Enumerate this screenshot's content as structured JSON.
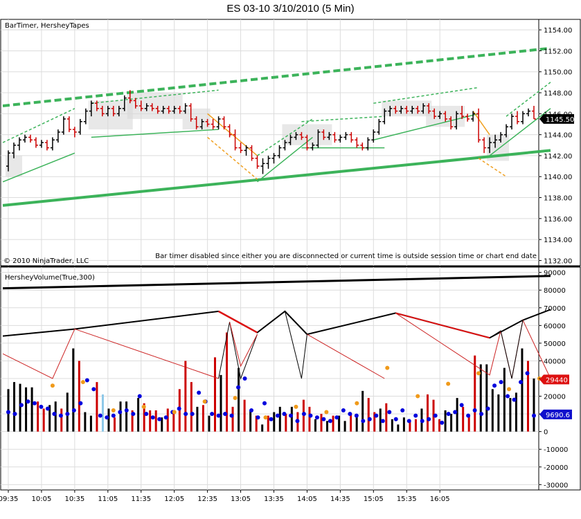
{
  "window": {
    "title": "ES 03-10  3/10/2010 (5 Min)"
  },
  "upper_panel": {
    "indicator_label": "BarTimer, HersheyTapes",
    "copyright": "© 2010 NinjaTrader, LLC",
    "message": "Bar timer disabled since either you are disconnected or current time is outside session time or chart end date",
    "current_price": "1145.50",
    "current_price_value": 1145.5
  },
  "lower_panel": {
    "indicator_label": "HersheyVolume(True,300)",
    "badge_red": "29440",
    "badge_red_value": 29440,
    "badge_blue": "9690.6",
    "badge_blue_value": 9690.6
  },
  "colors": {
    "up_bar": "#000000",
    "down_bar": "#cc0000",
    "green_line": "#3cb35a",
    "orange_line": "#f0a020",
    "blue_dot": "#0000dd",
    "orange_dot": "#f09a1a",
    "light_blue_bar": "#8cc8e8",
    "grid": "#dcdcdc",
    "gray_box": "#d8d8d8"
  },
  "chart_data": [
    {
      "type": "ohlc",
      "title": "ES 03-10  3/10/2010 (5 Min)",
      "ylim": [
        1131.5,
        1155
      ],
      "y_ticks": [
        "1154.00",
        "1152.00",
        "1150.00",
        "1148.00",
        "1146.00",
        "1144.00",
        "1142.00",
        "1140.00",
        "1138.00",
        "1136.00",
        "1134.00",
        "1132.00"
      ],
      "x_ticks": [
        "09:35",
        "10:05",
        "10:35",
        "11:05",
        "11:35",
        "12:05",
        "12:35",
        "13:05",
        "13:35",
        "14:05",
        "14:35",
        "15:05",
        "15:35",
        "16:05"
      ],
      "bars": [
        {
          "o": 1141,
          "h": 1142.5,
          "l": 1140.5,
          "c": 1142.25
        },
        {
          "o": 1142.25,
          "h": 1143.25,
          "l": 1141.75,
          "c": 1143
        },
        {
          "o": 1143,
          "h": 1143.75,
          "l": 1142.5,
          "c": 1143.5
        },
        {
          "o": 1143.5,
          "h": 1144,
          "l": 1143.25,
          "c": 1143.75
        },
        {
          "o": 1143.75,
          "h": 1144,
          "l": 1143.25,
          "c": 1143.5
        },
        {
          "o": 1143.5,
          "h": 1143.75,
          "l": 1142.75,
          "c": 1143
        },
        {
          "o": 1143,
          "h": 1143.5,
          "l": 1142.75,
          "c": 1143.25
        },
        {
          "o": 1143.25,
          "h": 1143.5,
          "l": 1142.5,
          "c": 1142.75
        },
        {
          "o": 1142.75,
          "h": 1143.75,
          "l": 1142.5,
          "c": 1143.5
        },
        {
          "o": 1143.5,
          "h": 1144.5,
          "l": 1143.25,
          "c": 1144.25
        },
        {
          "o": 1144.25,
          "h": 1145.75,
          "l": 1144,
          "c": 1145.5
        },
        {
          "o": 1145.5,
          "h": 1145.75,
          "l": 1144.25,
          "c": 1144.5
        },
        {
          "o": 1144.5,
          "h": 1144.75,
          "l": 1143.75,
          "c": 1144.25
        },
        {
          "o": 1144.25,
          "h": 1145.5,
          "l": 1144,
          "c": 1145.25
        },
        {
          "o": 1145.25,
          "h": 1146.5,
          "l": 1145,
          "c": 1146.25
        },
        {
          "o": 1146.25,
          "h": 1147.25,
          "l": 1145.75,
          "c": 1147
        },
        {
          "o": 1147,
          "h": 1147.25,
          "l": 1146.25,
          "c": 1146.5
        },
        {
          "o": 1146.5,
          "h": 1146.75,
          "l": 1145.75,
          "c": 1146
        },
        {
          "o": 1146,
          "h": 1146.75,
          "l": 1145.75,
          "c": 1146.5
        },
        {
          "o": 1146.5,
          "h": 1146.75,
          "l": 1145.75,
          "c": 1146
        },
        {
          "o": 1146,
          "h": 1146.75,
          "l": 1145.75,
          "c": 1146.5
        },
        {
          "o": 1146.5,
          "h": 1147.75,
          "l": 1146.25,
          "c": 1147.5
        },
        {
          "o": 1147.5,
          "h": 1148.25,
          "l": 1147,
          "c": 1147.25
        },
        {
          "o": 1147.25,
          "h": 1147.5,
          "l": 1146.5,
          "c": 1146.75
        },
        {
          "o": 1146.75,
          "h": 1147.25,
          "l": 1146.25,
          "c": 1146.5
        },
        {
          "o": 1146.5,
          "h": 1147,
          "l": 1146.25,
          "c": 1146.75
        },
        {
          "o": 1146.75,
          "h": 1147,
          "l": 1146.25,
          "c": 1146.5
        },
        {
          "o": 1146.5,
          "h": 1146.75,
          "l": 1146,
          "c": 1146.25
        },
        {
          "o": 1146.25,
          "h": 1146.75,
          "l": 1146,
          "c": 1146.5
        },
        {
          "o": 1146.5,
          "h": 1146.75,
          "l": 1146,
          "c": 1146.25
        },
        {
          "o": 1146.25,
          "h": 1146.75,
          "l": 1146,
          "c": 1146.5
        },
        {
          "o": 1146.5,
          "h": 1146.75,
          "l": 1146,
          "c": 1146.25
        },
        {
          "o": 1146.25,
          "h": 1147,
          "l": 1146,
          "c": 1146.75
        },
        {
          "o": 1146.75,
          "h": 1147,
          "l": 1145.25,
          "c": 1145.5
        },
        {
          "o": 1145.5,
          "h": 1145.75,
          "l": 1144.5,
          "c": 1144.75
        },
        {
          "o": 1144.75,
          "h": 1145.5,
          "l": 1144.5,
          "c": 1145.25
        },
        {
          "o": 1145.25,
          "h": 1145.5,
          "l": 1144.75,
          "c": 1145
        },
        {
          "o": 1145,
          "h": 1145.5,
          "l": 1144.5,
          "c": 1144.75
        },
        {
          "o": 1144.75,
          "h": 1145.75,
          "l": 1144.5,
          "c": 1145.5
        },
        {
          "o": 1145.5,
          "h": 1145.75,
          "l": 1144.5,
          "c": 1144.75
        },
        {
          "o": 1144.75,
          "h": 1145,
          "l": 1143.75,
          "c": 1144
        },
        {
          "o": 1144,
          "h": 1144.5,
          "l": 1142.5,
          "c": 1142.75
        },
        {
          "o": 1142.75,
          "h": 1143.25,
          "l": 1142.25,
          "c": 1142.5
        },
        {
          "o": 1142.5,
          "h": 1143,
          "l": 1142,
          "c": 1142.75
        },
        {
          "o": 1142.75,
          "h": 1143,
          "l": 1141.5,
          "c": 1141.75
        },
        {
          "o": 1141.75,
          "h": 1142,
          "l": 1140.75,
          "c": 1141
        },
        {
          "o": 1141,
          "h": 1141.75,
          "l": 1140.25,
          "c": 1141.25
        },
        {
          "o": 1141.25,
          "h": 1142,
          "l": 1140.75,
          "c": 1141.75
        },
        {
          "o": 1141.75,
          "h": 1142.25,
          "l": 1141.25,
          "c": 1142
        },
        {
          "o": 1142,
          "h": 1143,
          "l": 1141.75,
          "c": 1142.75
        },
        {
          "o": 1142.75,
          "h": 1143.5,
          "l": 1142.5,
          "c": 1143.25
        },
        {
          "o": 1143.25,
          "h": 1144,
          "l": 1143,
          "c": 1143.75
        },
        {
          "o": 1143.75,
          "h": 1144.25,
          "l": 1143.5,
          "c": 1144
        },
        {
          "o": 1144,
          "h": 1144.25,
          "l": 1143.5,
          "c": 1143.75
        },
        {
          "o": 1143.75,
          "h": 1144,
          "l": 1142.5,
          "c": 1142.75
        },
        {
          "o": 1142.75,
          "h": 1143.25,
          "l": 1142.5,
          "c": 1143
        },
        {
          "o": 1143,
          "h": 1144.5,
          "l": 1142.75,
          "c": 1144.25
        },
        {
          "o": 1144.25,
          "h": 1144.5,
          "l": 1143.5,
          "c": 1143.75
        },
        {
          "o": 1143.75,
          "h": 1144.25,
          "l": 1143.5,
          "c": 1144
        },
        {
          "o": 1144,
          "h": 1144.25,
          "l": 1143.25,
          "c": 1143.5
        },
        {
          "o": 1143.5,
          "h": 1144,
          "l": 1143.25,
          "c": 1143.75
        },
        {
          "o": 1143.75,
          "h": 1144.25,
          "l": 1143.5,
          "c": 1144
        },
        {
          "o": 1144,
          "h": 1144.25,
          "l": 1143.25,
          "c": 1143.5
        },
        {
          "o": 1143.5,
          "h": 1143.75,
          "l": 1142.75,
          "c": 1143
        },
        {
          "o": 1143,
          "h": 1143.25,
          "l": 1142.5,
          "c": 1142.75
        },
        {
          "o": 1142.75,
          "h": 1143.75,
          "l": 1142.5,
          "c": 1143.5
        },
        {
          "o": 1143.5,
          "h": 1144.5,
          "l": 1143.25,
          "c": 1144.25
        },
        {
          "o": 1144.25,
          "h": 1145.5,
          "l": 1144,
          "c": 1145.25
        },
        {
          "o": 1145.25,
          "h": 1146.5,
          "l": 1145,
          "c": 1146.25
        },
        {
          "o": 1146.25,
          "h": 1146.75,
          "l": 1145.75,
          "c": 1146.5
        },
        {
          "o": 1146.5,
          "h": 1146.75,
          "l": 1146,
          "c": 1146.25
        },
        {
          "o": 1146.25,
          "h": 1146.75,
          "l": 1146,
          "c": 1146.5
        },
        {
          "o": 1146.5,
          "h": 1146.75,
          "l": 1146,
          "c": 1146.25
        },
        {
          "o": 1146.25,
          "h": 1146.75,
          "l": 1146,
          "c": 1146.5
        },
        {
          "o": 1146.5,
          "h": 1146.75,
          "l": 1146,
          "c": 1146.25
        },
        {
          "o": 1146.25,
          "h": 1147,
          "l": 1146,
          "c": 1146.75
        },
        {
          "o": 1146.75,
          "h": 1147,
          "l": 1146,
          "c": 1146.25
        },
        {
          "o": 1146.25,
          "h": 1146.5,
          "l": 1145.5,
          "c": 1145.75
        },
        {
          "o": 1145.75,
          "h": 1146.25,
          "l": 1145.5,
          "c": 1146
        },
        {
          "o": 1146,
          "h": 1146.25,
          "l": 1145.25,
          "c": 1145.5
        },
        {
          "o": 1145.5,
          "h": 1145.75,
          "l": 1144.5,
          "c": 1144.75
        },
        {
          "o": 1144.75,
          "h": 1146.25,
          "l": 1144.5,
          "c": 1146
        },
        {
          "o": 1146,
          "h": 1146.75,
          "l": 1145.5,
          "c": 1145.75
        },
        {
          "o": 1145.75,
          "h": 1146,
          "l": 1145.25,
          "c": 1145.5
        },
        {
          "o": 1145.5,
          "h": 1146.25,
          "l": 1145.25,
          "c": 1146
        },
        {
          "o": 1146,
          "h": 1146.5,
          "l": 1143.25,
          "c": 1143.5
        },
        {
          "o": 1143.5,
          "h": 1143.75,
          "l": 1142.25,
          "c": 1142.75
        },
        {
          "o": 1142.75,
          "h": 1143.75,
          "l": 1142.25,
          "c": 1143.25
        },
        {
          "o": 1143.25,
          "h": 1144,
          "l": 1142.75,
          "c": 1143.5
        },
        {
          "o": 1143.5,
          "h": 1144.25,
          "l": 1143.25,
          "c": 1144
        },
        {
          "o": 1144,
          "h": 1145,
          "l": 1143.75,
          "c": 1144.75
        },
        {
          "o": 1144.75,
          "h": 1146,
          "l": 1144.5,
          "c": 1145.75
        },
        {
          "o": 1145.75,
          "h": 1146.25,
          "l": 1145,
          "c": 1145.25
        },
        {
          "o": 1145.25,
          "h": 1146.25,
          "l": 1145,
          "c": 1146
        },
        {
          "o": 1146,
          "h": 1146.5,
          "l": 1145.75,
          "c": 1146.25
        },
        {
          "o": 1146.25,
          "h": 1146.75,
          "l": 1145.5,
          "c": 1145.5
        }
      ]
    },
    {
      "type": "bar",
      "title": "HersheyVolume(True,300)",
      "ylim": [
        -33000,
        93000
      ],
      "y_ticks": [
        "90000",
        "80000",
        "70000",
        "60000",
        "50000",
        "40000",
        "30000",
        "20000",
        "10000",
        "0",
        "-10000",
        "-20000",
        "-30000"
      ],
      "volume": [
        {
          "v": 24000,
          "c": "b"
        },
        {
          "v": 28000,
          "c": "b"
        },
        {
          "v": 27000,
          "c": "b"
        },
        {
          "v": 25000,
          "c": "b"
        },
        {
          "v": 25000,
          "c": "b"
        },
        {
          "v": 17000,
          "c": "r"
        },
        {
          "v": 13000,
          "c": "r"
        },
        {
          "v": 15000,
          "c": "b"
        },
        {
          "v": 17000,
          "c": "b"
        },
        {
          "v": 13000,
          "c": "r"
        },
        {
          "v": 22000,
          "c": "b"
        },
        {
          "v": 47000,
          "c": "b"
        },
        {
          "v": 40000,
          "c": "r"
        },
        {
          "v": 11000,
          "c": "b"
        },
        {
          "v": 9000,
          "c": "b"
        },
        {
          "v": 28000,
          "c": "r"
        },
        {
          "v": 21000,
          "c": "lb"
        },
        {
          "v": 13000,
          "c": "b"
        },
        {
          "v": 8000,
          "c": "r"
        },
        {
          "v": 17000,
          "c": "b"
        },
        {
          "v": 17000,
          "c": "b"
        },
        {
          "v": 12000,
          "c": "r"
        },
        {
          "v": 19000,
          "c": "b"
        },
        {
          "v": 16000,
          "c": "r"
        },
        {
          "v": 12000,
          "c": "r"
        },
        {
          "v": 12000,
          "c": "r"
        },
        {
          "v": 8000,
          "c": "b"
        },
        {
          "v": 13000,
          "c": "r"
        },
        {
          "v": 10000,
          "c": "r"
        },
        {
          "v": 24000,
          "c": "r"
        },
        {
          "v": 40000,
          "c": "r"
        },
        {
          "v": 28000,
          "c": "r"
        },
        {
          "v": 14000,
          "c": "b"
        },
        {
          "v": 15000,
          "c": "r"
        },
        {
          "v": 9000,
          "c": "b"
        },
        {
          "v": 42000,
          "c": "r"
        },
        {
          "v": 32000,
          "c": "b"
        },
        {
          "v": 56000,
          "c": "r"
        },
        {
          "v": 14000,
          "c": "r"
        },
        {
          "v": 36000,
          "c": "b"
        },
        {
          "v": 18000,
          "c": "r"
        },
        {
          "v": 12000,
          "c": "b"
        },
        {
          "v": 9000,
          "c": "r"
        },
        {
          "v": 4000,
          "c": "b"
        },
        {
          "v": 9000,
          "c": "r"
        },
        {
          "v": 11000,
          "c": "b"
        },
        {
          "v": 14000,
          "c": "b"
        },
        {
          "v": 10000,
          "c": "r"
        },
        {
          "v": 14000,
          "c": "b"
        },
        {
          "v": 11000,
          "c": "r"
        },
        {
          "v": 18000,
          "c": "r"
        },
        {
          "v": 14000,
          "c": "r"
        },
        {
          "v": 7000,
          "c": "b"
        },
        {
          "v": 10000,
          "c": "r"
        },
        {
          "v": 6000,
          "c": "b"
        },
        {
          "v": 9000,
          "c": "r"
        },
        {
          "v": 9000,
          "c": "b"
        },
        {
          "v": 6000,
          "c": "b"
        },
        {
          "v": 10000,
          "c": "r"
        },
        {
          "v": 9000,
          "c": "b"
        },
        {
          "v": 23000,
          "c": "b"
        },
        {
          "v": 19000,
          "c": "r"
        },
        {
          "v": 11000,
          "c": "r"
        },
        {
          "v": 13000,
          "c": "b"
        },
        {
          "v": 16000,
          "c": "r"
        },
        {
          "v": 7000,
          "c": "b"
        },
        {
          "v": 4000,
          "c": "b"
        },
        {
          "v": 8000,
          "c": "b"
        },
        {
          "v": 6000,
          "c": "r"
        },
        {
          "v": 7000,
          "c": "r"
        },
        {
          "v": 13000,
          "c": "b"
        },
        {
          "v": 21000,
          "c": "r"
        },
        {
          "v": 18000,
          "c": "r"
        },
        {
          "v": 7000,
          "c": "r"
        },
        {
          "v": 12000,
          "c": "b"
        },
        {
          "v": 10000,
          "c": "b"
        },
        {
          "v": 19000,
          "c": "b"
        },
        {
          "v": 14000,
          "c": "r"
        },
        {
          "v": 9000,
          "c": "r"
        },
        {
          "v": 43000,
          "c": "r"
        },
        {
          "v": 38000,
          "c": "b"
        },
        {
          "v": 38000,
          "c": "b"
        },
        {
          "v": 24000,
          "c": "b"
        },
        {
          "v": 21000,
          "c": "b"
        },
        {
          "v": 36000,
          "c": "b"
        },
        {
          "v": 19000,
          "c": "b"
        },
        {
          "v": 22000,
          "c": "b"
        },
        {
          "v": 47000,
          "c": "b"
        },
        {
          "v": 40000,
          "c": "r"
        },
        {
          "v": 30000,
          "c": "b"
        }
      ],
      "blue_dots": [
        11000,
        10000,
        15000,
        17000,
        16000,
        14000,
        13000,
        10000,
        9000,
        10000,
        12000,
        16000,
        29000,
        24000,
        9000,
        8000,
        9000,
        11000,
        12000,
        10000,
        20000,
        10000,
        8000,
        7000,
        8000,
        11000,
        13000,
        10000,
        10000,
        22000,
        17000,
        10000,
        9000,
        10000,
        9000,
        25000,
        30000,
        12000,
        8000,
        16000,
        7000,
        9000,
        10000,
        9000,
        6000,
        10000,
        9000,
        8000,
        7000,
        6000,
        8000,
        12000,
        10000,
        9000,
        6000,
        7000,
        9000,
        6000,
        11000,
        7000,
        12000,
        6000,
        9000,
        6000,
        7000,
        9000,
        5000,
        10000,
        11000,
        15000,
        9000,
        12000,
        10000,
        13000,
        26000,
        28000,
        20000,
        18000,
        28000,
        33000,
        9000
      ],
      "orange_dots": [
        26000,
        28000,
        12000,
        14000,
        11000,
        17000,
        19000,
        8000,
        14000,
        11000,
        16000,
        36000,
        20000,
        27000,
        33000,
        24000,
        30000
      ]
    }
  ]
}
